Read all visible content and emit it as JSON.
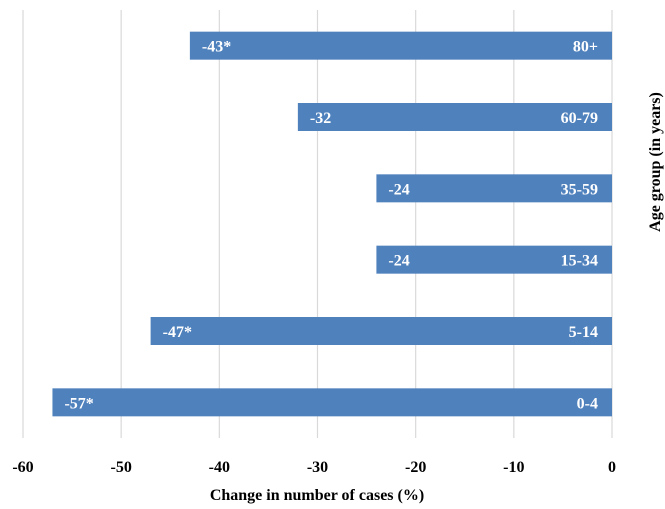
{
  "chart_data": {
    "type": "bar",
    "orientation": "horizontal",
    "categories": [
      "80+",
      "60-79",
      "35-59",
      "15-34",
      "5-14",
      "0-4"
    ],
    "values": [
      -43,
      -32,
      -24,
      -24,
      -47,
      -57
    ],
    "data_labels": [
      "-43*",
      "-32",
      "-24",
      "-24",
      "-47*",
      "-57*"
    ],
    "xlabel": "Change in number of cases (%)",
    "ylabel": "Age group (in years)",
    "xlim": [
      -60,
      0
    ],
    "xticks": [
      -60,
      -50,
      -40,
      -30,
      -20,
      -10,
      0
    ],
    "grid": "vertical",
    "legend": "none",
    "bar_color": "#4f81bd"
  }
}
